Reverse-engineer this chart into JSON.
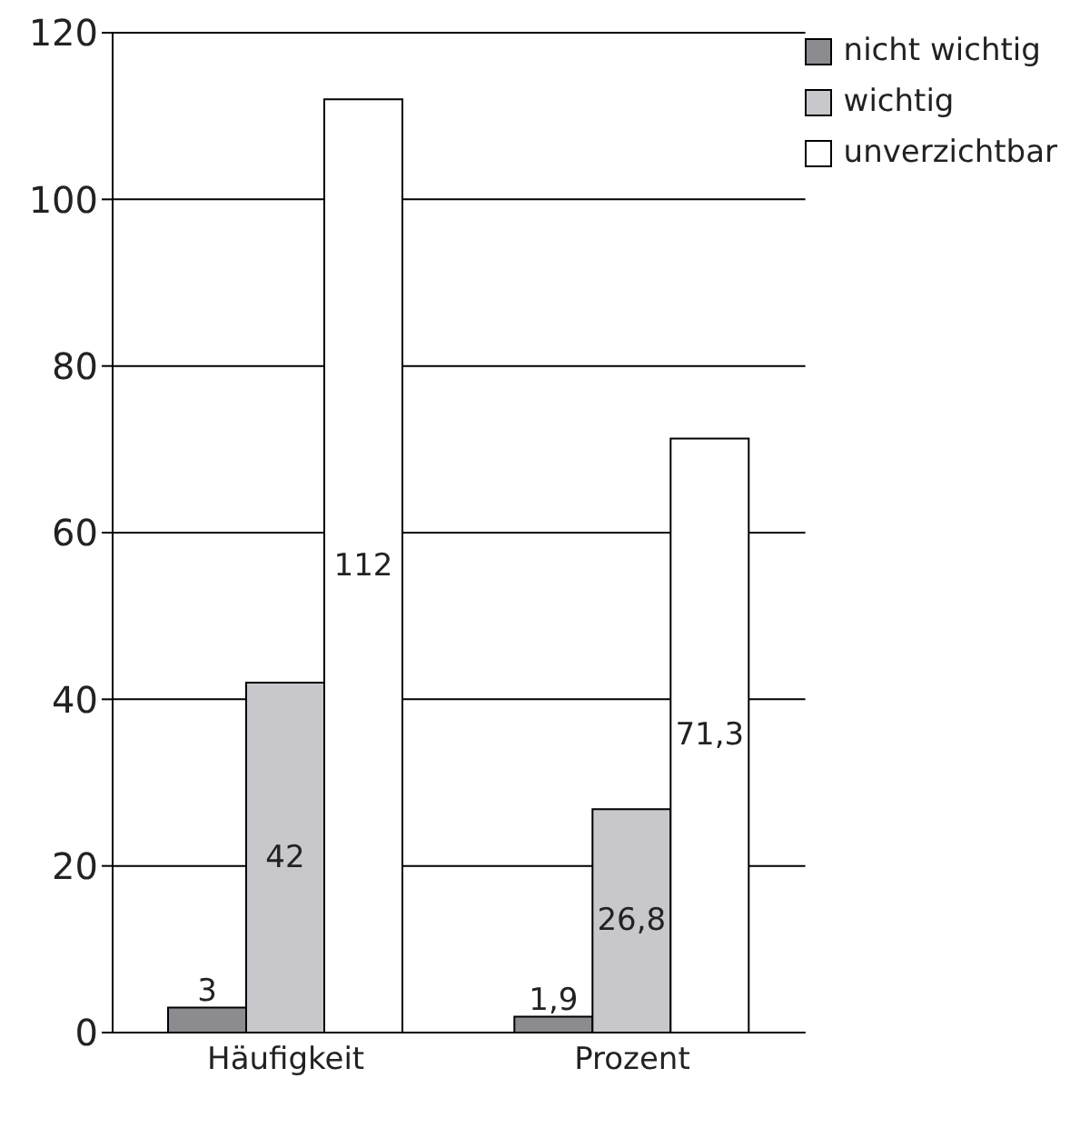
{
  "chart_data": {
    "type": "bar",
    "categories": [
      "Häufigkeit",
      "Prozent"
    ],
    "series": [
      {
        "name": "nicht wichtig",
        "color": "#8c8c90",
        "values": [
          3,
          1.9
        ],
        "value_labels": [
          "3",
          "1,9"
        ]
      },
      {
        "name": "wichtig",
        "color": "#c8c8cc",
        "values": [
          42,
          26.8
        ],
        "value_labels": [
          "42",
          "26,8"
        ]
      },
      {
        "name": "unverzichtbar",
        "color": "#ffffff",
        "values": [
          112,
          71.3
        ],
        "value_labels": [
          "112",
          "71,3"
        ]
      }
    ],
    "ylim": [
      0,
      120
    ],
    "yticks": [
      0,
      20,
      40,
      60,
      80,
      100,
      120
    ],
    "grid": "y",
    "legend": "top right"
  }
}
